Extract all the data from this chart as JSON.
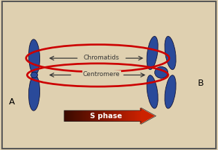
{
  "background_color": "#dfd0b0",
  "chromosome_color": "#2a4a9a",
  "chromosome_edge_color": "#111133",
  "label_A": "A",
  "label_B": "B",
  "label_chromatids": "Chromatids",
  "label_centromere": "Centromere",
  "label_sphase": "S phase",
  "ellipse_color": "#cc0000",
  "arrow_tail_color": "#3a0a00",
  "arrow_head_color": "#cc2200",
  "text_color": "#333333",
  "fig_width": 3.15,
  "fig_height": 2.17,
  "dpi": 100
}
